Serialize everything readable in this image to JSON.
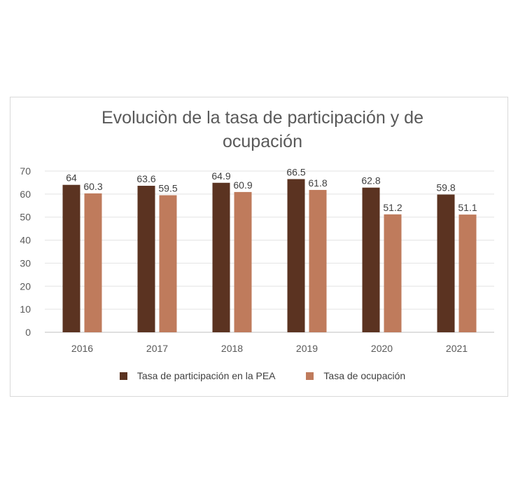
{
  "chart_data": {
    "type": "bar",
    "title_lines": [
      "Evoluciòn de la tasa de participación y de",
      "ocupación"
    ],
    "categories": [
      "2016",
      "2017",
      "2018",
      "2019",
      "2020",
      "2021"
    ],
    "series": [
      {
        "name": "Tasa de participación en la PEA",
        "color": "#5b3321",
        "values": [
          64,
          63.6,
          64.9,
          66.5,
          62.8,
          59.8
        ],
        "labels": [
          "64",
          "63.6",
          "64.9",
          "66.5",
          "62.8",
          "59.8"
        ]
      },
      {
        "name": "Tasa de ocupación",
        "color": "#bf7b5c",
        "values": [
          60.3,
          59.5,
          60.9,
          61.8,
          51.2,
          51.1
        ],
        "labels": [
          "60.3",
          "59.5",
          "60.9",
          "61.8",
          "51.2",
          "51.1"
        ]
      }
    ],
    "yticks": [
      "0",
      "10",
      "20",
      "30",
      "40",
      "50",
      "60",
      "70"
    ],
    "ylim": [
      0,
      70
    ],
    "grid": true,
    "legend": "bottom"
  }
}
